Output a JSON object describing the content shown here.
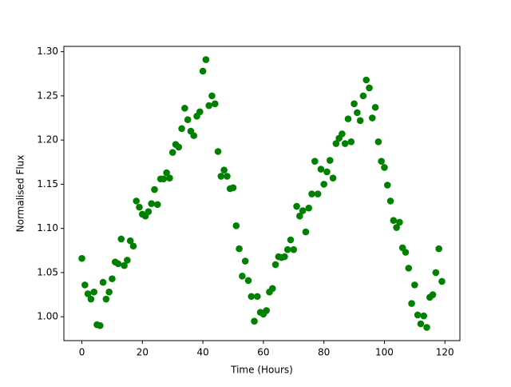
{
  "chart_data": {
    "type": "scatter",
    "xlabel": "Time (Hours)",
    "ylabel": "Normalised Flux",
    "color": "#008000",
    "x": [
      0,
      1,
      2,
      3,
      4,
      5,
      6,
      7,
      8,
      9,
      10,
      11,
      12,
      13,
      14,
      15,
      16,
      17,
      18,
      19,
      20,
      21,
      22,
      23,
      24,
      25,
      26,
      27,
      28,
      29,
      30,
      31,
      32,
      33,
      34,
      35,
      36,
      37,
      38,
      39,
      40,
      41,
      42,
      43,
      44,
      45,
      46,
      47,
      48,
      49,
      50,
      51,
      52,
      53,
      54,
      55,
      56,
      57,
      58,
      59,
      60,
      61,
      62,
      63,
      64,
      65,
      66,
      67,
      68,
      69,
      70,
      71,
      72,
      73,
      74,
      75,
      76,
      77,
      78,
      79,
      80,
      81,
      82,
      83,
      84,
      85,
      86,
      87,
      88,
      89,
      90,
      91,
      92,
      93,
      94,
      95,
      96,
      97,
      98,
      99,
      100,
      101,
      102,
      103,
      104,
      105,
      106,
      107,
      108,
      109,
      110,
      111,
      112,
      113,
      114,
      115,
      116,
      117,
      118,
      119
    ],
    "values": [
      1.066,
      1.036,
      1.026,
      1.02,
      1.028,
      0.991,
      0.99,
      1.039,
      1.02,
      1.028,
      1.043,
      1.062,
      1.06,
      1.088,
      1.058,
      1.064,
      1.086,
      1.08,
      1.131,
      1.124,
      1.116,
      1.114,
      1.119,
      1.128,
      1.144,
      1.127,
      1.156,
      1.156,
      1.163,
      1.157,
      1.186,
      1.195,
      1.192,
      1.213,
      1.236,
      1.223,
      1.21,
      1.205,
      1.227,
      1.232,
      1.278,
      1.291,
      1.239,
      1.25,
      1.241,
      1.187,
      1.159,
      1.166,
      1.159,
      1.145,
      1.146,
      1.103,
      1.077,
      1.046,
      1.063,
      1.041,
      1.023,
      0.995,
      1.023,
      1.005,
      1.003,
      1.007,
      1.028,
      1.032,
      1.059,
      1.068,
      1.067,
      1.068,
      1.076,
      1.087,
      1.076,
      1.125,
      1.114,
      1.12,
      1.096,
      1.123,
      1.139,
      1.176,
      1.139,
      1.167,
      1.15,
      1.164,
      1.177,
      1.157,
      1.196,
      1.202,
      1.207,
      1.196,
      1.224,
      1.198,
      1.241,
      1.231,
      1.222,
      1.25,
      1.268,
      1.259,
      1.225,
      1.237,
      1.198,
      1.176,
      1.169,
      1.149,
      1.131,
      1.109,
      1.101,
      1.107,
      1.078,
      1.073,
      1.055,
      1.015,
      1.036,
      1.002,
      0.992,
      1.001,
      0.988,
      1.022,
      1.025,
      1.05,
      1.077,
      1.04
    ],
    "xlim": [
      -5.95,
      124.95
    ],
    "xticks": [
      0,
      20,
      40,
      60,
      80,
      100,
      120
    ],
    "ylim": [
      0.973,
      1.306
    ],
    "yticks": [
      {
        "value": 1,
        "label": "1.00"
      },
      {
        "value": 1.05,
        "label": "1.05"
      },
      {
        "value": 1.1,
        "label": "1.10"
      },
      {
        "value": 1.15,
        "label": "1.15"
      },
      {
        "value": 1.2,
        "label": "1.20"
      },
      {
        "value": 1.25,
        "label": "1.25"
      },
      {
        "value": 1.3,
        "label": "1.30"
      }
    ]
  }
}
